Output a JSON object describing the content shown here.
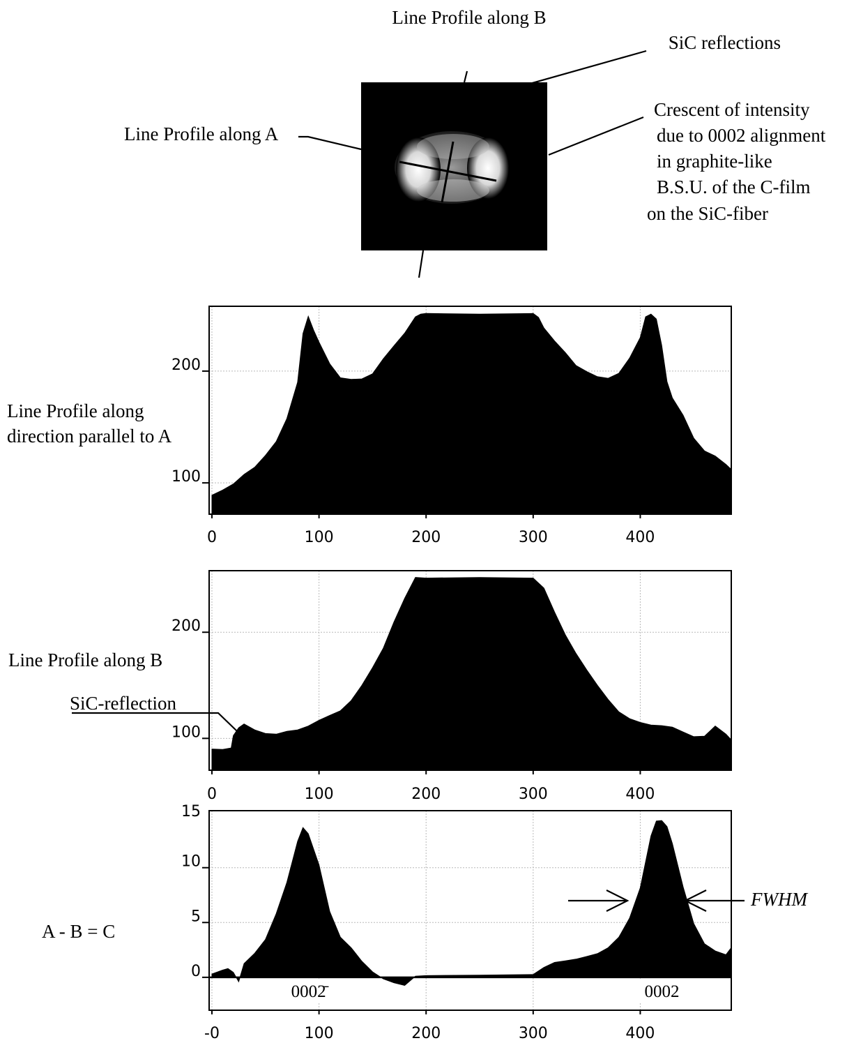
{
  "figure": {
    "title_top": "Line Profile along B",
    "label_sic_reflections": "SiC reflections",
    "label_line_a": "Line Profile along A",
    "crescent_lines": [
      "Crescent of intensity",
      "due to 0002 alignment",
      "in graphite-like",
      "B.S.U. of the C-film",
      "on the SiC-fiber"
    ]
  },
  "chart_data": [
    {
      "type": "area",
      "row_label_lines": [
        "Line Profile along",
        "direction parallel to A"
      ],
      "x_ticks": [
        "0",
        "100",
        "200",
        "300",
        "400"
      ],
      "y_ticks": [
        {
          "value": 200,
          "label": "200"
        },
        {
          "value": 100,
          "label": "100"
        }
      ],
      "xlim": [
        0,
        485
      ],
      "ylim": [
        72,
        258
      ],
      "grid": true,
      "x": [
        0,
        10,
        20,
        30,
        40,
        50,
        60,
        70,
        80,
        85,
        90,
        95,
        100,
        110,
        120,
        130,
        140,
        150,
        160,
        170,
        180,
        190,
        195,
        200,
        250,
        300,
        305,
        310,
        320,
        330,
        340,
        350,
        360,
        370,
        380,
        390,
        400,
        405,
        410,
        415,
        420,
        425,
        430,
        440,
        450,
        460,
        470,
        480,
        485
      ],
      "values": [
        89,
        93,
        99,
        107,
        114,
        124,
        137,
        157,
        190,
        233,
        249,
        236,
        226,
        206,
        194,
        192,
        193,
        197,
        211,
        222,
        234,
        248,
        251,
        251,
        251,
        251,
        248,
        238,
        227,
        216,
        205,
        199,
        195,
        193,
        198,
        211,
        230,
        248,
        251,
        246,
        223,
        190,
        176,
        160,
        140,
        128,
        124,
        116,
        112
      ]
    },
    {
      "type": "area",
      "row_label_lines": [
        "Line Profile along B"
      ],
      "annotation": "SiC-reflection",
      "x_ticks": [
        "0",
        "100",
        "200",
        "300",
        "400"
      ],
      "y_ticks": [
        {
          "value": 200,
          "label": "200"
        },
        {
          "value": 100,
          "label": "100"
        }
      ],
      "xlim": [
        0,
        485
      ],
      "ylim": [
        70,
        258
      ],
      "grid": true,
      "x": [
        0,
        10,
        18,
        20,
        25,
        30,
        40,
        50,
        60,
        70,
        80,
        90,
        100,
        110,
        120,
        130,
        140,
        150,
        160,
        170,
        180,
        190,
        200,
        250,
        300,
        310,
        320,
        330,
        340,
        350,
        360,
        370,
        380,
        390,
        400,
        410,
        420,
        430,
        440,
        450,
        460,
        470,
        480,
        485
      ],
      "values": [
        90,
        89,
        91,
        102,
        110,
        113,
        108,
        104,
        104,
        106,
        108,
        111,
        117,
        121,
        126,
        135,
        150,
        166,
        185,
        209,
        232,
        251,
        251,
        251,
        251,
        241,
        219,
        197,
        180,
        164,
        150,
        136,
        125,
        118,
        115,
        112,
        112,
        110,
        106,
        101,
        102,
        111,
        104,
        98
      ]
    },
    {
      "type": "area",
      "row_label_lines": [
        "A - B = C"
      ],
      "x_ticks": [
        "-0",
        "100",
        "200",
        "300",
        "400"
      ],
      "y_ticks": [
        {
          "value": 10,
          "label": "10"
        },
        {
          "value": 5,
          "label": "5"
        },
        {
          "value": 0,
          "label": "0"
        }
      ],
      "top_tick_label": "15",
      "xlim": [
        0,
        485
      ],
      "ylim": [
        -3,
        15.2
      ],
      "grid": true,
      "x": [
        0,
        10,
        15,
        20,
        25,
        30,
        40,
        50,
        60,
        70,
        80,
        85,
        90,
        100,
        110,
        120,
        130,
        140,
        150,
        160,
        170,
        180,
        190,
        200,
        250,
        300,
        310,
        320,
        330,
        340,
        350,
        360,
        370,
        380,
        390,
        400,
        410,
        415,
        420,
        425,
        430,
        440,
        450,
        460,
        470,
        480,
        485
      ],
      "values": [
        0.3,
        0.6,
        0.8,
        0.4,
        -0.4,
        1.2,
        2.2,
        3.4,
        5.8,
        8.6,
        12.4,
        13.6,
        13.1,
        10.2,
        6.0,
        3.6,
        2.7,
        1.4,
        0.5,
        -0.2,
        -0.5,
        -0.8,
        0.1,
        0.1,
        0.2,
        0.2,
        0.9,
        1.3,
        1.5,
        1.6,
        1.9,
        2.1,
        2.7,
        3.6,
        5.4,
        8.1,
        12.9,
        14.2,
        14.3,
        13.7,
        12.2,
        8.2,
        4.9,
        3.0,
        2.4,
        2.0,
        2.7
      ],
      "peak_labels": [
        {
          "x": 85,
          "text": "0002̄"
        },
        {
          "x": 415,
          "text": "0002"
        }
      ],
      "annotation": "FWHM"
    }
  ]
}
